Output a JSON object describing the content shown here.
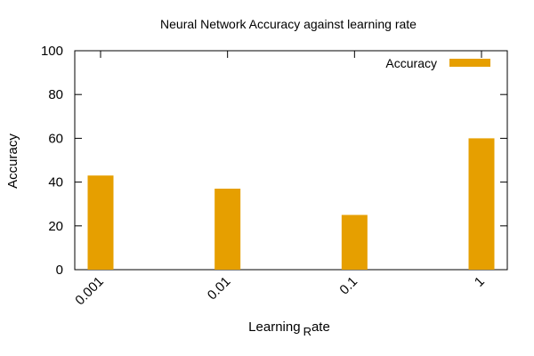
{
  "chart_data": {
    "type": "bar",
    "title": "Neural Network Accuracy against learning rate",
    "xlabel_prefix": "Learning",
    "xlabel_sub": "R",
    "xlabel_suffix": "ate",
    "ylabel": "Accuracy",
    "categories": [
      "0.001",
      "0.01",
      "0.1",
      "1"
    ],
    "series": [
      {
        "name": "Accuracy",
        "values": [
          43,
          37,
          25,
          60
        ],
        "color": "#e69f00"
      }
    ],
    "ylim": [
      0,
      100
    ],
    "yticks": [
      0,
      20,
      40,
      60,
      80,
      100
    ],
    "grid": false,
    "legend": "top-right",
    "border_color": "#000000",
    "bar_color": "#e69f00"
  }
}
